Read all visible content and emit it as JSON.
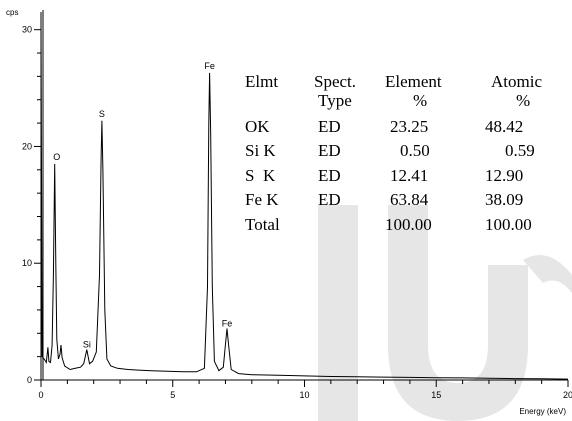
{
  "chart_data": {
    "type": "line",
    "y_unit_label": "cps",
    "xlabel": "Energy (keV)",
    "xlim": [
      0,
      20
    ],
    "ylim": [
      0,
      31
    ],
    "x_ticks": [
      0,
      5,
      10,
      15,
      20
    ],
    "y_ticks": [
      0,
      10,
      20,
      30
    ],
    "grid": false,
    "peaks": [
      {
        "label": "O",
        "x": 0.52,
        "y": 18.5
      },
      {
        "label": "Si",
        "x": 1.74,
        "y": 2.6
      },
      {
        "label": "S",
        "x": 2.31,
        "y": 22.2
      },
      {
        "label": "Fe",
        "x": 6.4,
        "y": 26.3
      },
      {
        "label": "Fe",
        "x": 7.06,
        "y": 4.4
      }
    ],
    "series": [
      {
        "values": [
          [
            0.0,
            31
          ],
          [
            0.04,
            2.0
          ],
          [
            0.12,
            1.8
          ],
          [
            0.2,
            1.5
          ],
          [
            0.26,
            2.8
          ],
          [
            0.3,
            1.6
          ],
          [
            0.36,
            1.5
          ],
          [
            0.42,
            3.0
          ],
          [
            0.47,
            9.0
          ],
          [
            0.52,
            18.5
          ],
          [
            0.56,
            10.0
          ],
          [
            0.6,
            3.5
          ],
          [
            0.66,
            1.8
          ],
          [
            0.72,
            2.2
          ],
          [
            0.76,
            3.0
          ],
          [
            0.8,
            1.9
          ],
          [
            0.9,
            1.2
          ],
          [
            1.1,
            0.9
          ],
          [
            1.3,
            1.0
          ],
          [
            1.5,
            1.1
          ],
          [
            1.62,
            1.4
          ],
          [
            1.74,
            2.6
          ],
          [
            1.84,
            1.4
          ],
          [
            1.96,
            1.6
          ],
          [
            2.1,
            2.4
          ],
          [
            2.22,
            9.0
          ],
          [
            2.28,
            19.0
          ],
          [
            2.31,
            22.2
          ],
          [
            2.35,
            18.0
          ],
          [
            2.42,
            6.0
          ],
          [
            2.5,
            1.8
          ],
          [
            2.65,
            1.2
          ],
          [
            2.9,
            1.0
          ],
          [
            3.3,
            0.9
          ],
          [
            3.7,
            0.85
          ],
          [
            4.2,
            0.8
          ],
          [
            4.8,
            0.75
          ],
          [
            5.4,
            0.7
          ],
          [
            5.9,
            0.7
          ],
          [
            6.2,
            1.0
          ],
          [
            6.32,
            8.0
          ],
          [
            6.37,
            22.0
          ],
          [
            6.4,
            26.3
          ],
          [
            6.44,
            21.0
          ],
          [
            6.5,
            8.0
          ],
          [
            6.58,
            1.6
          ],
          [
            6.75,
            0.8
          ],
          [
            6.92,
            1.1
          ],
          [
            7.0,
            3.0
          ],
          [
            7.06,
            4.4
          ],
          [
            7.12,
            3.0
          ],
          [
            7.22,
            0.9
          ],
          [
            7.5,
            0.55
          ],
          [
            8.0,
            0.45
          ],
          [
            9.0,
            0.4
          ],
          [
            10.0,
            0.35
          ],
          [
            11.0,
            0.3
          ],
          [
            12.0,
            0.28
          ],
          [
            13.0,
            0.25
          ],
          [
            14.0,
            0.22
          ],
          [
            15.0,
            0.2
          ],
          [
            16.0,
            0.18
          ],
          [
            17.0,
            0.15
          ],
          [
            18.0,
            0.12
          ],
          [
            19.0,
            0.1
          ],
          [
            20.0,
            0.08
          ]
        ]
      }
    ],
    "table": {
      "header1": [
        "Elmt",
        "Spect.",
        "Element",
        "Atomic"
      ],
      "header2": [
        "",
        "Type",
        "%",
        "%"
      ],
      "rows": [
        [
          "OK",
          "ED",
          "23.25",
          "48.42"
        ],
        [
          "Si K",
          "ED",
          "0.50",
          "0.59"
        ],
        [
          "S  K",
          "ED",
          "12.41",
          "12.90"
        ],
        [
          "Fe K",
          "ED",
          "63.84",
          "38.09"
        ],
        [
          "Total",
          "",
          "100.00",
          "100.00"
        ]
      ]
    },
    "colors": {
      "line": "#000000",
      "axis": "#000000",
      "watermark": "#e6e6e6"
    }
  }
}
